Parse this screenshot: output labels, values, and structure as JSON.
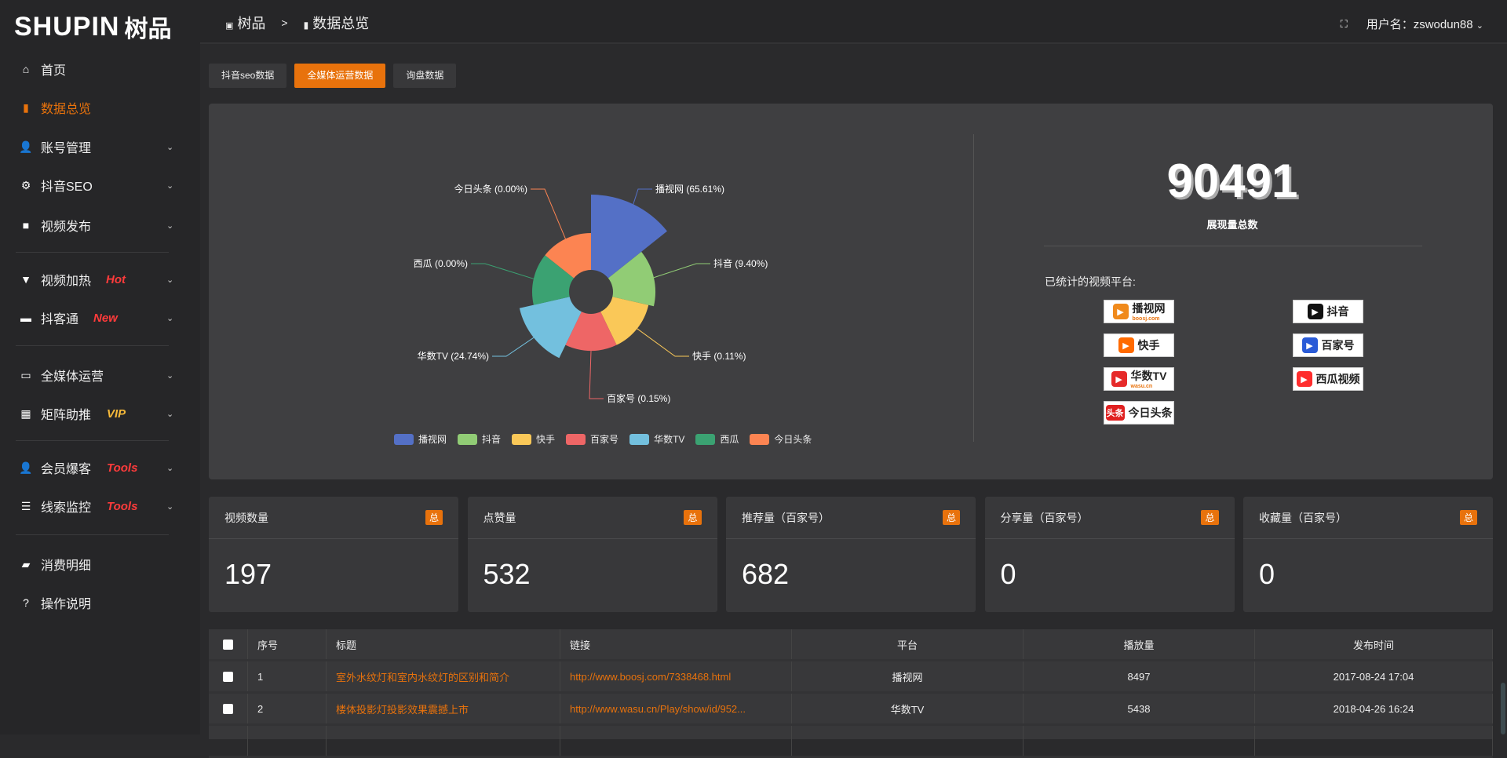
{
  "logo": {
    "en": "SHUPIN",
    "cn": "树品"
  },
  "breadcrumb": {
    "home": "树品",
    "sep": ">",
    "current": "数据总览"
  },
  "header": {
    "user_label": "用户名：zswodun88"
  },
  "sidebar": {
    "items": [
      {
        "label": "首页",
        "icon": "home-icon"
      },
      {
        "label": "数据总览",
        "icon": "bar-chart-icon",
        "active": true
      },
      {
        "label": "账号管理",
        "icon": "user-icon",
        "chevron": true
      },
      {
        "label": "抖音SEO",
        "icon": "gear-icon",
        "chevron": true
      },
      {
        "label": "视频发布",
        "icon": "camera-icon",
        "chevron": true
      },
      {
        "label": "视频加热",
        "icon": "sign-icon",
        "chevron": true,
        "badge": "Hot",
        "badge_color": "#ff3b3b"
      },
      {
        "label": "抖客通",
        "icon": "chat-icon",
        "chevron": true,
        "badge": "New",
        "badge_color": "#ff3b3b"
      },
      {
        "label": "全媒体运营",
        "icon": "monitor-icon",
        "chevron": true
      },
      {
        "label": "矩阵助推",
        "icon": "grid-icon",
        "chevron": true,
        "badge": "VIP",
        "badge_color": "#f5b93a"
      },
      {
        "label": "会员爆客",
        "icon": "user-icon",
        "chevron": true,
        "badge": "Tools",
        "badge_color": "#ff3b3b"
      },
      {
        "label": "线索监控",
        "icon": "sliders-icon",
        "chevron": true,
        "badge": "Tools",
        "badge_color": "#ff3b3b"
      },
      {
        "label": "消费明细",
        "icon": "wallet-icon"
      },
      {
        "label": "操作说明",
        "icon": "help-icon"
      }
    ]
  },
  "tabs": [
    {
      "label": "抖音seo数据"
    },
    {
      "label": "全媒体运营数据",
      "active": true
    },
    {
      "label": "询盘数据"
    }
  ],
  "chart_data": {
    "type": "pie",
    "rose": true,
    "categories": [
      "播视网",
      "抖音",
      "快手",
      "百家号",
      "华数TV",
      "西瓜",
      "今日头条"
    ],
    "values": [
      65.61,
      9.4,
      0.11,
      0.15,
      24.74,
      0.0,
      0.0
    ],
    "labels": [
      "播视网 (65.61%)",
      "抖音 (9.40%)",
      "快手 (0.11%)",
      "百家号 (0.15%)",
      "华数TV (24.74%)",
      "西瓜 (0.00%)",
      "今日头条 (0.00%)"
    ],
    "colors": [
      "#5470c6",
      "#91cc75",
      "#fac858",
      "#ee6666",
      "#73c0de",
      "#3ba272",
      "#fc8452"
    ],
    "legend_position": "bottom"
  },
  "summary": {
    "total": "90491",
    "total_label": "展现量总数",
    "platforms_label": "已统计的视频平台:"
  },
  "platforms": [
    {
      "name": "播视网",
      "sub": "boosj.com",
      "color": "#f08a1c"
    },
    {
      "name": "抖音",
      "color": "#111111"
    },
    {
      "name": "快手",
      "color": "#ff6a00"
    },
    {
      "name": "百家号",
      "color": "#2a5bd7"
    },
    {
      "name": "华数TV",
      "sub": "wasu.cn",
      "color": "#e62a2a"
    },
    {
      "name": "西瓜视频",
      "color": "#ff2d2d"
    },
    {
      "name": "今日头条",
      "mark": "头条",
      "color": "#e02020"
    }
  ],
  "stats": [
    {
      "title": "视频数量",
      "badge": "总",
      "value": "197"
    },
    {
      "title": "点赞量",
      "badge": "总",
      "value": "532"
    },
    {
      "title": "推荐量（百家号）",
      "badge": "总",
      "value": "682"
    },
    {
      "title": "分享量（百家号）",
      "badge": "总",
      "value": "0"
    },
    {
      "title": "收藏量（百家号）",
      "badge": "总",
      "value": "0"
    }
  ],
  "table": {
    "headers": [
      "序号",
      "标题",
      "链接",
      "平台",
      "播放量",
      "发布时间"
    ],
    "rows": [
      [
        "1",
        "室外水纹灯和室内水纹灯的区别和简介",
        "http://www.boosj.com/7338468.html",
        "播视网",
        "8497",
        "2017-08-24 17:04"
      ],
      [
        "2",
        "楼体投影灯投影效果震撼上市",
        "http://www.wasu.cn/Play/show/id/952...",
        "华数TV",
        "5438",
        "2018-04-26 16:24"
      ]
    ]
  }
}
